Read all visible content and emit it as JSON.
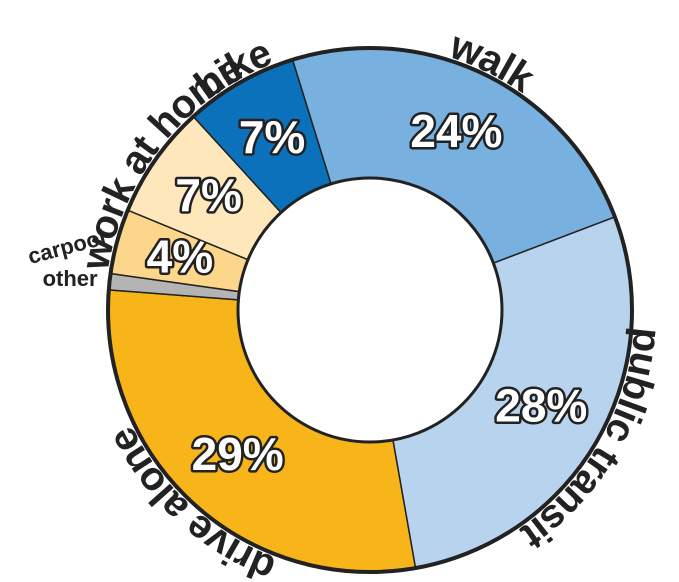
{
  "chart_data": {
    "type": "donut",
    "categories": [
      "walk",
      "public transit",
      "drive alone",
      "other",
      "carpool",
      "work at home",
      "bike"
    ],
    "values": [
      24,
      28,
      29,
      1,
      4,
      7,
      7
    ],
    "value_labels": [
      "24%",
      "28%",
      "29%",
      null,
      "4%",
      "7%",
      "7%"
    ],
    "colors": [
      "#78b0e0",
      "#b8d3ee",
      "#f7b519",
      "#b4b4b4",
      "#fcd68a",
      "#fde7bb",
      "#0b71bb"
    ]
  }
}
